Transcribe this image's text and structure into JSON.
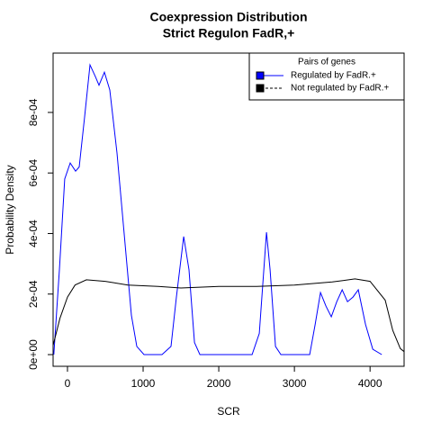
{
  "chart_data": {
    "type": "line",
    "title": [
      "Coexpression Distribution",
      "Strict Regulon FadR,+"
    ],
    "xlabel": "SCR",
    "ylabel": "Probability Density",
    "xlim": [
      -190,
      4450
    ],
    "xticks": [
      0,
      1000,
      2000,
      3000,
      4000
    ],
    "ylim": [
      -3.86e-05,
      0.000996
    ],
    "yticks": [
      {
        "value": 0,
        "label": "0e+00"
      },
      {
        "value": 0.0002,
        "label": "2e-04"
      },
      {
        "value": 0.0004,
        "label": "4e-04"
      },
      {
        "value": 0.0006,
        "label": "6e-04"
      },
      {
        "value": 0.0008,
        "label": "8e-04"
      }
    ],
    "legend_title": "Pairs of genes",
    "legend_position": "top-right",
    "series": [
      {
        "name": "Regulated by  FadR.+",
        "color": "#0000ff",
        "x": [
          -180,
          -107,
          -36,
          36,
          107,
          155,
          226,
          298,
          369,
          417,
          488,
          560,
          655,
          750,
          845,
          917,
          1012,
          1250,
          1369,
          1440,
          1536,
          1607,
          1679,
          1750,
          2440,
          2536,
          2631,
          2679,
          2750,
          2821,
          3202,
          3274,
          3345,
          3417,
          3488,
          3560,
          3631,
          3702,
          3774,
          3845,
          3940,
          4036,
          4155
        ],
        "values": [
          0,
          0.00028,
          0.00058,
          0.000633,
          0.000606,
          0.00062,
          0.000785,
          0.000957,
          0.000918,
          0.00089,
          0.000933,
          0.000874,
          0.000666,
          0.000398,
          0.00013,
          2.7e-05,
          0,
          0,
          2.7e-05,
          0.00019,
          0.00039,
          0.00028,
          4e-05,
          0,
          0,
          7e-05,
          0.000404,
          0.00028,
          2.7e-05,
          0,
          0,
          0.0001,
          0.000205,
          0.00016,
          0.000125,
          0.000175,
          0.000214,
          0.000175,
          0.00019,
          0.000214,
          0.0001,
          1.8e-05,
          0
        ]
      },
      {
        "name": "Not regulated by  FadR.+",
        "color": "#000000",
        "x": [
          -190,
          -100,
          0,
          100,
          250,
          500,
          800,
          1200,
          1500,
          2000,
          2500,
          3000,
          3500,
          3800,
          4000,
          4200,
          4300,
          4400,
          4450
        ],
        "values": [
          3e-05,
          0.00012,
          0.00019,
          0.00023,
          0.000247,
          0.000242,
          0.00023,
          0.000225,
          0.00022,
          0.000225,
          0.000225,
          0.00023,
          0.00024,
          0.00025,
          0.000242,
          0.00018,
          8e-05,
          2e-05,
          1e-05
        ]
      }
    ]
  }
}
